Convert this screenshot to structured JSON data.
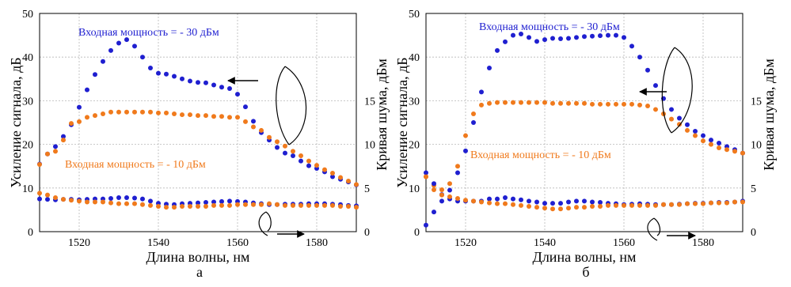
{
  "colors": {
    "gain": "#1f1fd0",
    "noise": "#f07a1c",
    "grid": "#b8b8b8"
  },
  "chart_data": [
    {
      "type": "scatter",
      "caption": "а",
      "xlabel": "Длина волны, нм",
      "ylabel_left": "Усиление сигнала, дБ",
      "ylabel_right": "Кривая шума, дБм",
      "xlim": [
        1510,
        1590
      ],
      "ylim_left": [
        0,
        50
      ],
      "ylim_right": [
        0,
        25
      ],
      "x_ticks": [
        1520,
        1540,
        1560,
        1580
      ],
      "y_left_ticks": [
        0,
        10,
        20,
        30,
        40,
        50
      ],
      "y_right_ticks": [
        0,
        5,
        10,
        15
      ],
      "grid": true,
      "annotations": {
        "blue": "Входная мощность = - 30 дБм",
        "orange": "Входная мощность = - 10 дБм"
      },
      "series": [
        {
          "color": "gain",
          "axis": "left",
          "x": [
            1510,
            1512,
            1514,
            1516,
            1518,
            1520,
            1522,
            1524,
            1526,
            1528,
            1530,
            1532,
            1534,
            1536,
            1538,
            1540,
            1542,
            1544,
            1546,
            1548,
            1550,
            1552,
            1554,
            1556,
            1558,
            1560,
            1562,
            1564,
            1566,
            1568,
            1570,
            1572,
            1574,
            1576,
            1578,
            1580,
            1582,
            1584,
            1586,
            1588,
            1590
          ],
          "y": [
            15.5,
            17.8,
            19.5,
            21.8,
            24.5,
            28.5,
            32.5,
            36,
            39,
            41.5,
            43.2,
            44,
            42.5,
            40,
            37.5,
            36.3,
            36.1,
            35.6,
            35,
            34.5,
            34.2,
            34.1,
            33.6,
            33.1,
            32.8,
            31.5,
            28.6,
            25.3,
            22.7,
            21,
            19.3,
            18,
            17.4,
            16.2,
            15.1,
            14.5,
            13.7,
            12.6,
            12,
            11.4,
            10.7
          ]
        },
        {
          "color": "noise",
          "axis": "right",
          "x": [
            1510,
            1512,
            1514,
            1516,
            1518,
            1520,
            1522,
            1524,
            1526,
            1528,
            1530,
            1532,
            1534,
            1536,
            1538,
            1540,
            1542,
            1544,
            1546,
            1548,
            1550,
            1552,
            1554,
            1556,
            1558,
            1560,
            1562,
            1564,
            1566,
            1568,
            1570,
            1572,
            1574,
            1576,
            1578,
            1580,
            1582,
            1584,
            1586,
            1588,
            1590
          ],
          "y": [
            7.7,
            8.9,
            9.2,
            10.5,
            12.4,
            12.6,
            13.1,
            13.3,
            13.5,
            13.7,
            13.7,
            13.7,
            13.7,
            13.7,
            13.7,
            13.6,
            13.6,
            13.5,
            13.4,
            13.4,
            13.3,
            13.3,
            13.2,
            13.2,
            13.1,
            13.1,
            12.6,
            12,
            11.6,
            10.8,
            10.3,
            9.8,
            9.2,
            8.7,
            8.1,
            7.6,
            7.1,
            6.7,
            6.2,
            5.8,
            5.4
          ]
        },
        {
          "color": "gain",
          "axis": "left",
          "x": [
            1510,
            1512,
            1514,
            1516,
            1518,
            1520,
            1522,
            1524,
            1526,
            1528,
            1530,
            1532,
            1534,
            1536,
            1538,
            1540,
            1542,
            1544,
            1546,
            1548,
            1550,
            1552,
            1554,
            1556,
            1558,
            1560,
            1562,
            1564,
            1566,
            1568,
            1570,
            1572,
            1574,
            1576,
            1578,
            1580,
            1582,
            1584,
            1586,
            1588,
            1590
          ],
          "y": [
            7.5,
            7.4,
            7.3,
            7.4,
            7.4,
            7.3,
            7.4,
            7.5,
            7.5,
            7.6,
            7.8,
            7.8,
            7.7,
            7.5,
            7,
            6.5,
            6.3,
            6.2,
            6.4,
            6.5,
            6.6,
            6.7,
            6.8,
            6.9,
            7,
            6.9,
            6.8,
            6.6,
            6.4,
            6.2,
            6.2,
            6.3,
            6.3,
            6.3,
            6.4,
            6.4,
            6.4,
            6.3,
            6.2,
            6,
            5.9
          ]
        },
        {
          "color": "noise",
          "axis": "right",
          "x": [
            1510,
            1512,
            1514,
            1516,
            1518,
            1520,
            1522,
            1524,
            1526,
            1528,
            1530,
            1532,
            1534,
            1536,
            1538,
            1540,
            1542,
            1544,
            1546,
            1548,
            1550,
            1552,
            1554,
            1556,
            1558,
            1560,
            1562,
            1564,
            1566,
            1568,
            1570,
            1572,
            1574,
            1576,
            1578,
            1580,
            1582,
            1584,
            1586,
            1588,
            1590
          ],
          "y": [
            4.4,
            4.2,
            3.9,
            3.7,
            3.6,
            3.5,
            3.4,
            3.4,
            3.4,
            3.3,
            3.2,
            3.2,
            3.2,
            3.1,
            3,
            2.9,
            2.8,
            2.8,
            2.9,
            2.9,
            2.9,
            2.9,
            3,
            3,
            3,
            3.1,
            3.1,
            3.1,
            3.1,
            3.2,
            3.1,
            3,
            3,
            3,
            3,
            3,
            3,
            3,
            2.9,
            2.9,
            2.8
          ]
        }
      ]
    },
    {
      "type": "scatter",
      "caption": "б",
      "xlabel": "Длина волны, нм",
      "ylabel_left": "Усиление сигнала, дБ",
      "ylabel_right": "Кривая шума, дБм",
      "xlim": [
        1510,
        1590
      ],
      "ylim_left": [
        0,
        50
      ],
      "ylim_right": [
        0,
        25
      ],
      "x_ticks": [
        1520,
        1540,
        1560,
        1580
      ],
      "y_left_ticks": [
        0,
        10,
        20,
        30,
        40,
        50
      ],
      "y_right_ticks": [
        0,
        5,
        10,
        15
      ],
      "grid": true,
      "annotations": {
        "blue": "Входная мощность = - 30 дБм",
        "orange": "Входная мощность = - 10 дБм"
      },
      "series": [
        {
          "color": "gain",
          "axis": "left",
          "x": [
            1510,
            1512,
            1514,
            1516,
            1518,
            1520,
            1522,
            1524,
            1526,
            1528,
            1530,
            1532,
            1534,
            1536,
            1538,
            1540,
            1542,
            1544,
            1546,
            1548,
            1550,
            1552,
            1554,
            1556,
            1558,
            1560,
            1562,
            1564,
            1566,
            1568,
            1570,
            1572,
            1574,
            1576,
            1578,
            1580,
            1582,
            1584,
            1586,
            1588,
            1590
          ],
          "y": [
            1.5,
            4.5,
            7,
            9.5,
            13.5,
            18.5,
            25,
            32,
            37.5,
            41.5,
            43.5,
            45,
            45.3,
            44.5,
            43.6,
            44,
            44.3,
            44.2,
            44.3,
            44.5,
            44.7,
            44.8,
            44.9,
            45,
            45,
            44.5,
            42.5,
            40,
            37,
            33.5,
            30.5,
            28,
            26,
            24.5,
            23,
            22,
            21,
            20.3,
            19.5,
            18.8,
            18
          ]
        },
        {
          "color": "noise",
          "axis": "right",
          "x": [
            1510,
            1512,
            1514,
            1516,
            1518,
            1520,
            1522,
            1524,
            1526,
            1528,
            1530,
            1532,
            1534,
            1536,
            1538,
            1540,
            1542,
            1544,
            1546,
            1548,
            1550,
            1552,
            1554,
            1556,
            1558,
            1560,
            1562,
            1564,
            1566,
            1568,
            1570,
            1572,
            1574,
            1576,
            1578,
            1580,
            1582,
            1584,
            1586,
            1588,
            1590
          ],
          "y": [
            6.3,
            5.3,
            4.8,
            5.5,
            7.5,
            11,
            13.5,
            14.5,
            14.7,
            14.8,
            14.8,
            14.8,
            14.8,
            14.8,
            14.8,
            14.8,
            14.7,
            14.7,
            14.7,
            14.7,
            14.7,
            14.6,
            14.6,
            14.6,
            14.6,
            14.6,
            14.6,
            14.5,
            14.4,
            14,
            13.5,
            12.9,
            12.3,
            11.6,
            11,
            10.4,
            10,
            9.6,
            9.4,
            9.2,
            9
          ]
        },
        {
          "color": "gain",
          "axis": "left",
          "x": [
            1510,
            1512,
            1514,
            1516,
            1518,
            1520,
            1522,
            1524,
            1526,
            1528,
            1530,
            1532,
            1534,
            1536,
            1538,
            1540,
            1542,
            1544,
            1546,
            1548,
            1550,
            1552,
            1554,
            1556,
            1558,
            1560,
            1562,
            1564,
            1566,
            1568,
            1570,
            1572,
            1574,
            1576,
            1578,
            1580,
            1582,
            1584,
            1586,
            1588,
            1590
          ],
          "y": [
            13.5,
            11,
            8.5,
            7.5,
            7,
            7,
            7,
            7,
            7.5,
            7.5,
            7.8,
            7.5,
            7.3,
            7,
            6.8,
            6.5,
            6.5,
            6.5,
            6.8,
            7,
            7,
            6.8,
            6.7,
            6.5,
            6.4,
            6.2,
            6.3,
            6.4,
            6.3,
            6.2,
            6.2,
            6.2,
            6.3,
            6.4,
            6.5,
            6.5,
            6.6,
            6.7,
            6.7,
            6.8,
            7
          ]
        },
        {
          "color": "noise",
          "axis": "right",
          "x": [
            1510,
            1512,
            1514,
            1516,
            1518,
            1520,
            1522,
            1524,
            1526,
            1528,
            1530,
            1532,
            1534,
            1536,
            1538,
            1540,
            1542,
            1544,
            1546,
            1548,
            1550,
            1552,
            1554,
            1556,
            1558,
            1560,
            1562,
            1564,
            1566,
            1568,
            1570,
            1572,
            1574,
            1576,
            1578,
            1580,
            1582,
            1584,
            1586,
            1588,
            1590
          ],
          "y": [
            6.3,
            4.8,
            4.2,
            4,
            3.8,
            3.6,
            3.5,
            3.4,
            3.3,
            3.2,
            3.2,
            3.1,
            3,
            2.9,
            2.8,
            2.7,
            2.6,
            2.6,
            2.7,
            2.8,
            2.8,
            2.9,
            2.9,
            3,
            3,
            3,
            3,
            3,
            3,
            3,
            3.1,
            3.1,
            3.1,
            3.2,
            3.2,
            3.2,
            3.3,
            3.3,
            3.3,
            3.4,
            3.4
          ]
        }
      ]
    }
  ]
}
